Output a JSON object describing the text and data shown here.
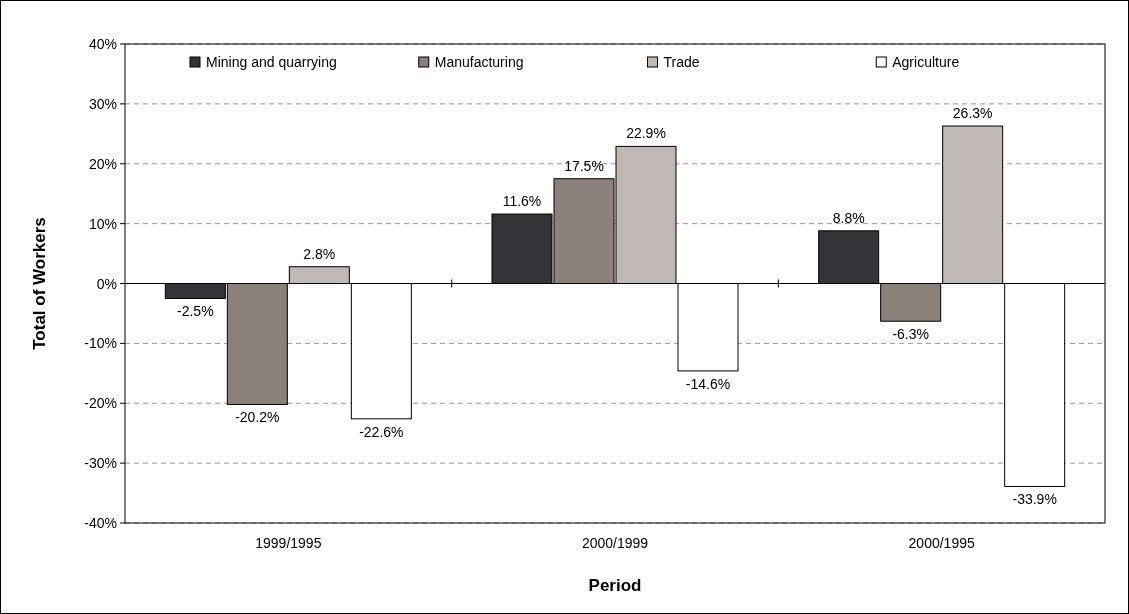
{
  "chart_data": {
    "type": "bar",
    "xlabel": "Period",
    "ylabel": "Total of Workers",
    "categories": [
      "1999/1995",
      "2000/1999",
      "2000/1995"
    ],
    "series": [
      {
        "name": "Mining and quarrying",
        "color": "#333338",
        "values": [
          -2.5,
          11.6,
          8.8
        ],
        "value_labels": [
          "-2.5%",
          "11.6%",
          "8.8%"
        ]
      },
      {
        "name": "Manufacturing",
        "color": "#8c807a",
        "values": [
          -20.2,
          17.5,
          -6.3
        ],
        "value_labels": [
          "-20.2%",
          "17.5%",
          "-6.3%"
        ]
      },
      {
        "name": "Trade",
        "color": "#c0b8b5",
        "values": [
          2.8,
          22.9,
          26.3
        ],
        "value_labels": [
          "2.8%",
          "22.9%",
          "26.3%"
        ]
      },
      {
        "name": "Agriculture",
        "color": "#ffffff",
        "values": [
          -22.6,
          -14.6,
          -33.9
        ],
        "value_labels": [
          "-22.6%",
          "-14.6%",
          "-33.9%"
        ]
      }
    ],
    "ylim": [
      -40,
      40
    ],
    "yticks": [
      {
        "value": -40,
        "label": "-40%"
      },
      {
        "value": -30,
        "label": "-30%"
      },
      {
        "value": -20,
        "label": "-20%"
      },
      {
        "value": -10,
        "label": "-10%"
      },
      {
        "value": 0,
        "label": "0%"
      },
      {
        "value": 10,
        "label": "10%"
      },
      {
        "value": 20,
        "label": "20%"
      },
      {
        "value": 30,
        "label": "30%"
      },
      {
        "value": 40,
        "label": "40%"
      }
    ],
    "grid": "y",
    "legend": "top"
  }
}
